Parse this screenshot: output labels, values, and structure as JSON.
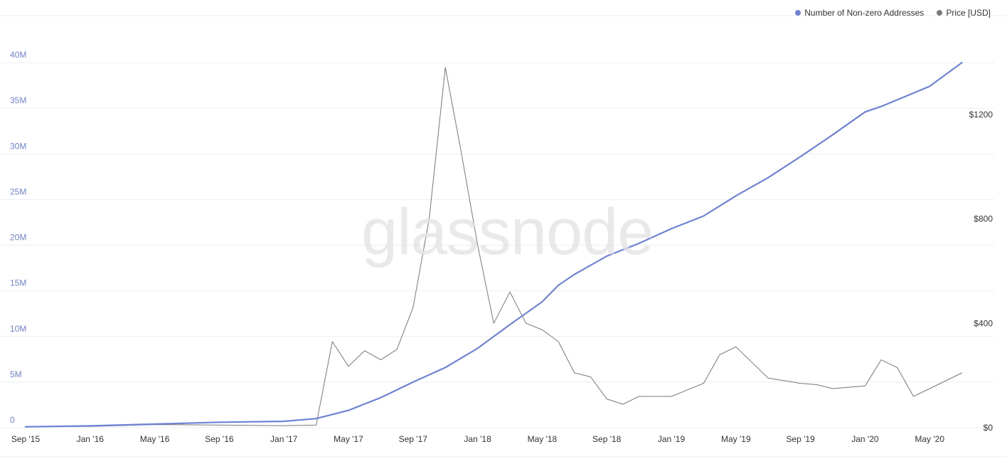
{
  "legend": [
    {
      "label": "Number of Non-zero Addresses",
      "color": "#6f83d6"
    },
    {
      "label": "Price [USD]",
      "color": "#7a7a7a"
    }
  ],
  "watermark": "glassnode",
  "colors": {
    "addresses": "#6f83d6",
    "price": "#777777",
    "grid": "#eceef3",
    "left_axis_text": "#6f83d6",
    "right_axis_text": "#333333",
    "axis_text": "#333333"
  },
  "chart_data": {
    "type": "line",
    "title": "",
    "xlabel": "",
    "ylabel": "",
    "x_ticks": [
      "Sep '15",
      "Jan '16",
      "May '16",
      "Sep '16",
      "Jan '17",
      "May '17",
      "Sep '17",
      "Jan '18",
      "May '18",
      "Sep '18",
      "Jan '19",
      "May '19",
      "Sep '19",
      "Jan '20",
      "May '20"
    ],
    "left_y_ticks": [
      "0",
      "5M",
      "10M",
      "15M",
      "20M",
      "25M",
      "30M",
      "35M",
      "40M"
    ],
    "right_y_ticks": [
      "$0",
      "$400",
      "$800",
      "$1200"
    ],
    "left_ylim": [
      0,
      40000000
    ],
    "right_ylim": [
      0,
      1600
    ],
    "grid": true,
    "legend_position": "top-right",
    "series": [
      {
        "name": "Number of Non-zero Addresses",
        "axis": "left",
        "x_month_index": [
          0,
          4,
          8,
          12,
          16,
          18,
          20,
          22,
          24,
          26,
          28,
          30,
          32,
          33,
          34,
          36,
          38,
          40,
          42,
          44,
          46,
          48,
          50,
          52,
          53,
          56,
          58
        ],
        "values": [
          100000,
          200000,
          400000,
          600000,
          700000,
          1000000,
          1900000,
          3300000,
          5000000,
          6600000,
          8700000,
          11300000,
          13800000,
          15600000,
          16800000,
          18800000,
          20200000,
          21800000,
          23200000,
          25400000,
          27400000,
          29700000,
          32100000,
          34600000,
          35200000,
          37400000,
          40000000
        ]
      },
      {
        "name": "Price [USD]",
        "axis": "right",
        "x_month_index": [
          0,
          4,
          8,
          12,
          16,
          18,
          19,
          20,
          21,
          22,
          23,
          24,
          25,
          26,
          27,
          28,
          29,
          30,
          31,
          32,
          33,
          34,
          35,
          36,
          37,
          38,
          40,
          41,
          42,
          43,
          44,
          45,
          46,
          48,
          49,
          50,
          52,
          53,
          54,
          55,
          56,
          58
        ],
        "values": [
          5,
          5,
          12,
          10,
          8,
          10,
          330,
          235,
          295,
          260,
          300,
          460,
          800,
          1380,
          1050,
          700,
          400,
          520,
          400,
          375,
          330,
          210,
          195,
          110,
          90,
          120,
          120,
          145,
          170,
          280,
          310,
          250,
          190,
          170,
          165,
          150,
          160,
          260,
          230,
          120,
          150,
          210
        ]
      }
    ]
  }
}
